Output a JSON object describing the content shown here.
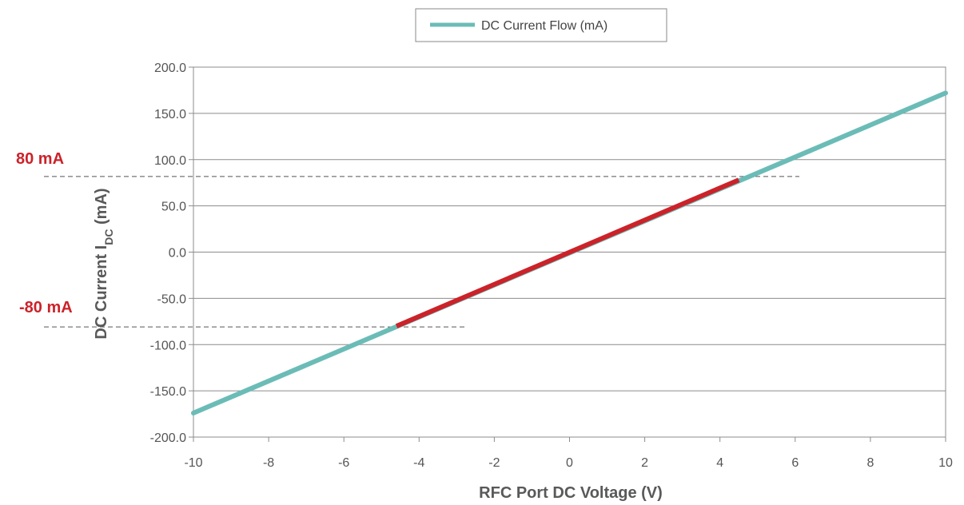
{
  "chart_data": {
    "type": "line",
    "xlabel": "RFC Port DC Voltage (V)",
    "ylabel_main": "DC Current I",
    "ylabel_sub": "DC",
    "ylabel_unit": " (mA)",
    "xlim": [
      -10,
      10
    ],
    "ylim": [
      -200,
      200
    ],
    "x_ticks": [
      "-10",
      "-8",
      "-6",
      "-4",
      "-2",
      "0",
      "2",
      "4",
      "6",
      "8",
      "10"
    ],
    "y_ticks": [
      "200.0",
      "150.0",
      "100.0",
      "50.0",
      "0.0",
      "-50.0",
      "-100.0",
      "-150.0",
      "-200.0"
    ],
    "grid": "horizontal",
    "legend_position": "top-center",
    "series": [
      {
        "name": "DC Current Flow (mA)",
        "color": "#6bbcb7",
        "x": [
          -10,
          10
        ],
        "y": [
          -174,
          172
        ]
      }
    ],
    "highlight": {
      "color": "#cc2229",
      "x": [
        -4.6,
        4.5
      ],
      "y": [
        -80,
        78
      ]
    },
    "annotations": [
      {
        "text": "80 mA",
        "value": 80,
        "color": "#cc2229"
      },
      {
        "text": "-80 mA",
        "value": -80,
        "color": "#cc2229"
      }
    ]
  }
}
